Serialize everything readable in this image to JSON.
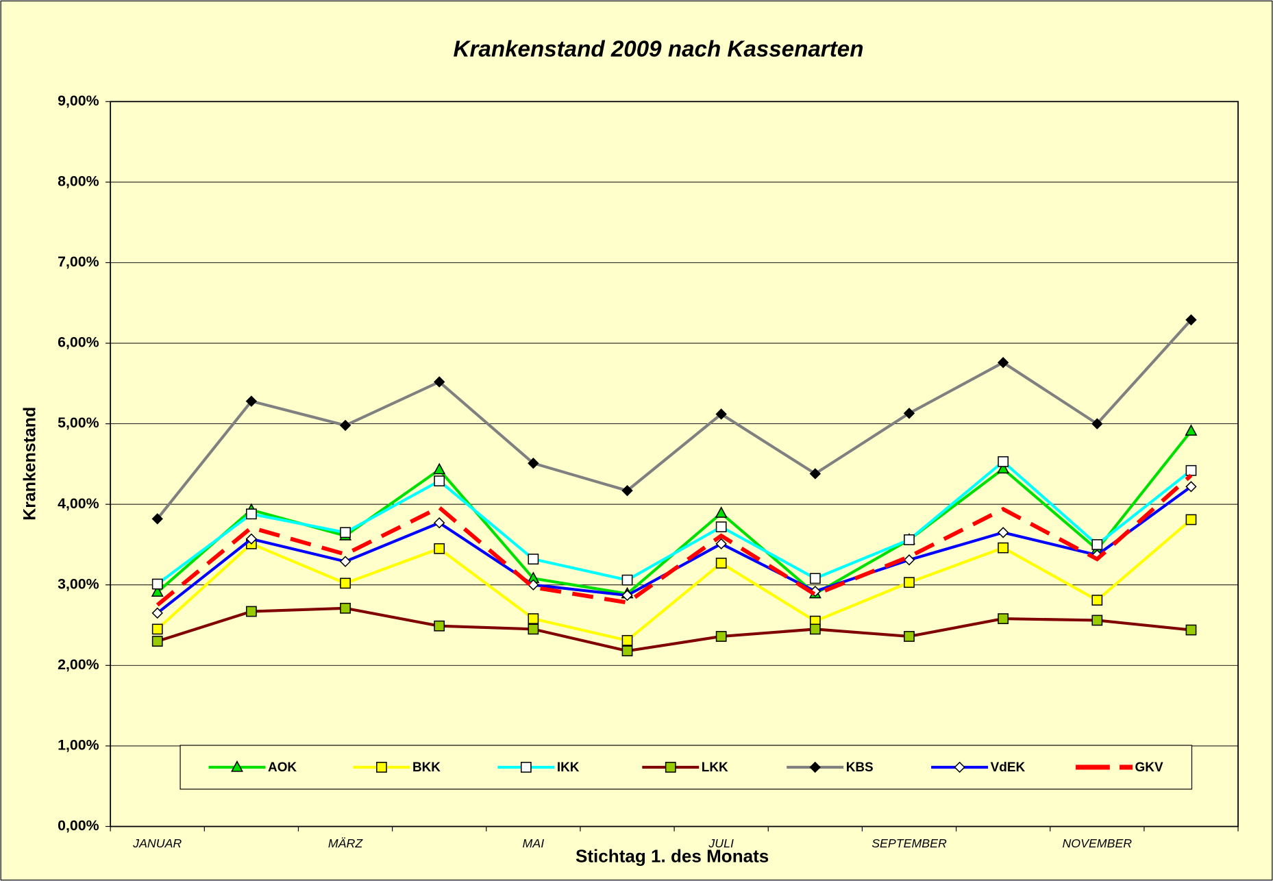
{
  "chart_data": {
    "type": "line",
    "title": "Krankenstand 2009 nach Kassenarten",
    "x_label": "Stichtag 1. des Monats",
    "y_label": "Krankenstand",
    "categories": [
      "JANUAR",
      null,
      "MÄRZ",
      null,
      "MAI",
      null,
      "JULI",
      null,
      "SEPTEMBER",
      null,
      "NOVEMBER",
      null
    ],
    "ylim": [
      0,
      9
    ],
    "yticks": [
      {
        "value": 0,
        "label": "0,00%"
      },
      {
        "value": 1,
        "label": "1,00%"
      },
      {
        "value": 2,
        "label": "2,00%"
      },
      {
        "value": 3,
        "label": "3,00%"
      },
      {
        "value": 4,
        "label": "4,00%"
      },
      {
        "value": 5,
        "label": "5,00%"
      },
      {
        "value": 6,
        "label": "6,00%"
      },
      {
        "value": 7,
        "label": "7,00%"
      },
      {
        "value": 8,
        "label": "8,00%"
      },
      {
        "value": 9,
        "label": "9,00%"
      }
    ],
    "grid": true,
    "legend": "lower center",
    "series": [
      {
        "name": "AOK",
        "color": "#00e000",
        "marker": "triangle",
        "marker_fill": "#00e000",
        "values": [
          2.91,
          3.93,
          3.61,
          4.43,
          3.08,
          2.89,
          3.89,
          2.89,
          3.56,
          4.44,
          3.44,
          4.91
        ]
      },
      {
        "name": "BKK",
        "color": "#ffff00",
        "marker": "square",
        "marker_fill": "#ffff00",
        "values": [
          2.45,
          3.51,
          3.02,
          3.45,
          2.58,
          2.31,
          3.27,
          2.55,
          3.03,
          3.46,
          2.81,
          3.81
        ]
      },
      {
        "name": "IKK",
        "color": "#00ffff",
        "marker": "square",
        "marker_fill": "#ffffff",
        "values": [
          3.01,
          3.88,
          3.65,
          4.29,
          3.32,
          3.06,
          3.72,
          3.08,
          3.56,
          4.53,
          3.5,
          4.42
        ]
      },
      {
        "name": "LKK",
        "color": "#800000",
        "marker": "square",
        "marker_fill": "#99cc00",
        "values": [
          2.3,
          2.67,
          2.71,
          2.49,
          2.45,
          2.18,
          2.36,
          2.45,
          2.36,
          2.58,
          2.56,
          2.44
        ]
      },
      {
        "name": "KBS",
        "color": "#808080",
        "marker": "diamond",
        "marker_fill": "#000000",
        "values": [
          3.82,
          5.28,
          4.98,
          5.52,
          4.51,
          4.17,
          5.12,
          4.38,
          5.13,
          5.76,
          5.0,
          6.29
        ]
      },
      {
        "name": "VdEK",
        "color": "#0000ff",
        "marker": "diamond",
        "marker_fill": "#ffffff",
        "values": [
          2.65,
          3.57,
          3.29,
          3.77,
          3.0,
          2.87,
          3.51,
          2.92,
          3.31,
          3.65,
          3.37,
          4.22
        ]
      },
      {
        "name": "GKV",
        "color": "#ff0000",
        "marker": "none",
        "dashed": true,
        "values": [
          2.75,
          3.71,
          3.38,
          3.96,
          2.97,
          2.78,
          3.61,
          2.88,
          3.35,
          3.94,
          3.32,
          4.36
        ]
      }
    ]
  }
}
